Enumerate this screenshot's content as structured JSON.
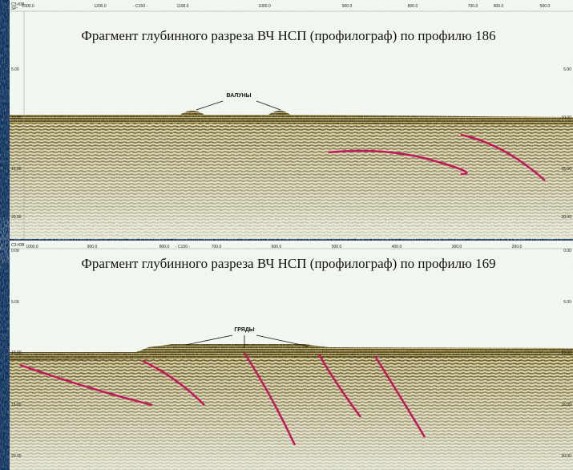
{
  "panels": [
    {
      "header": "СЗ-ЮВ",
      "sp": "SP:",
      "title": "Фрагмент глубинного разреза  ВЧ НСП (профилограф)  по профилю 186",
      "label": "ВАЛУНЫ",
      "top_labels": [
        "1300.0",
        "1200.0",
        "- C150 -",
        "1100.0",
        "1000.0",
        "900.0",
        "800.0",
        "700.0",
        "600.0",
        "500.0"
      ],
      "depth_labels": [
        "5.00",
        "10.00",
        "15.00",
        "20.00"
      ]
    },
    {
      "header": "СЗ-ЮВ",
      "title": "Фрагмент глубинного разреза  ВЧ НСП (профилограф)  по профилю 169",
      "label": "ГРЯДЫ",
      "top_labels": [
        "1000.0",
        "900.0",
        "800.0",
        "- C150 -",
        "700.0",
        "600.0",
        "500.0",
        "400.0",
        "300.0",
        "200.0"
      ],
      "depth_labels": [
        "0.00",
        "5.00",
        "10.00",
        "15.00",
        "20.00"
      ]
    }
  ]
}
